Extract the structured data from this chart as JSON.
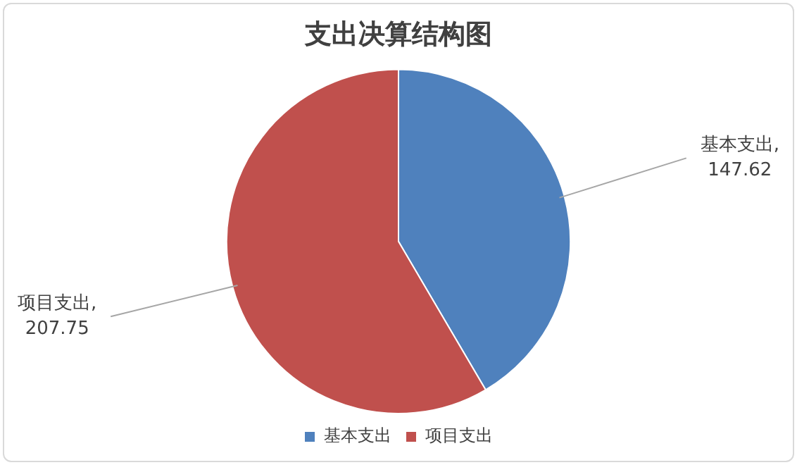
{
  "chart_data": {
    "type": "pie",
    "title": "支出决算结构图",
    "categories": [
      "基本支出",
      "项目支出"
    ],
    "values": [
      147.62,
      207.75
    ],
    "colors": [
      "#4f81bd",
      "#c0504d"
    ],
    "value_labels": [
      "基本支出,\n147.62",
      "项目支出,\n207.75"
    ],
    "legend": "bottom"
  }
}
